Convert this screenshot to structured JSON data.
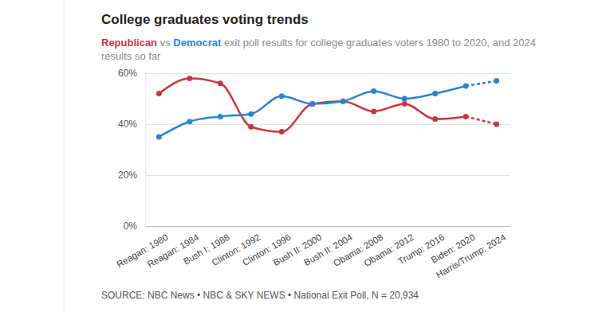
{
  "chart_data": {
    "type": "line",
    "title": "College graduates voting trends",
    "subtitle": "Republican vs Democrat exit poll results for college graduates voters 1980 to 2020, and 2024 results so far",
    "source": "SOURCE: NBC News • NBC & SKY NEWS • National Exit Poll, N = 20,934",
    "categories": [
      "Reagan: 1980",
      "Reagan: 1984",
      "Bush I: 1988",
      "Clinton: 1992",
      "Clinton: 1996",
      "Bush II: 2000",
      "Bush II: 2004",
      "Obama: 2008",
      "Obama: 2012",
      "Trump: 2016",
      "Biden: 2020",
      "Harris/Trump: 2024"
    ],
    "series": [
      {
        "name": "Republican",
        "color": "#c9373e",
        "marker": "circle",
        "values": [
          52,
          58,
          56,
          39,
          37,
          48,
          49,
          45,
          48,
          42,
          43,
          40
        ]
      },
      {
        "name": "Democrat",
        "color": "#2a84d2",
        "marker": "circle",
        "values": [
          35,
          41,
          43,
          44,
          51,
          48,
          49,
          53,
          50,
          52,
          55,
          57
        ]
      }
    ],
    "ylim": [
      0,
      60
    ],
    "yticks": [
      {
        "value": 0,
        "label": "0%"
      },
      {
        "value": 20,
        "label": "20%"
      },
      {
        "value": 40,
        "label": "40%"
      },
      {
        "value": 60,
        "label": "60%"
      }
    ],
    "grid": true
  }
}
